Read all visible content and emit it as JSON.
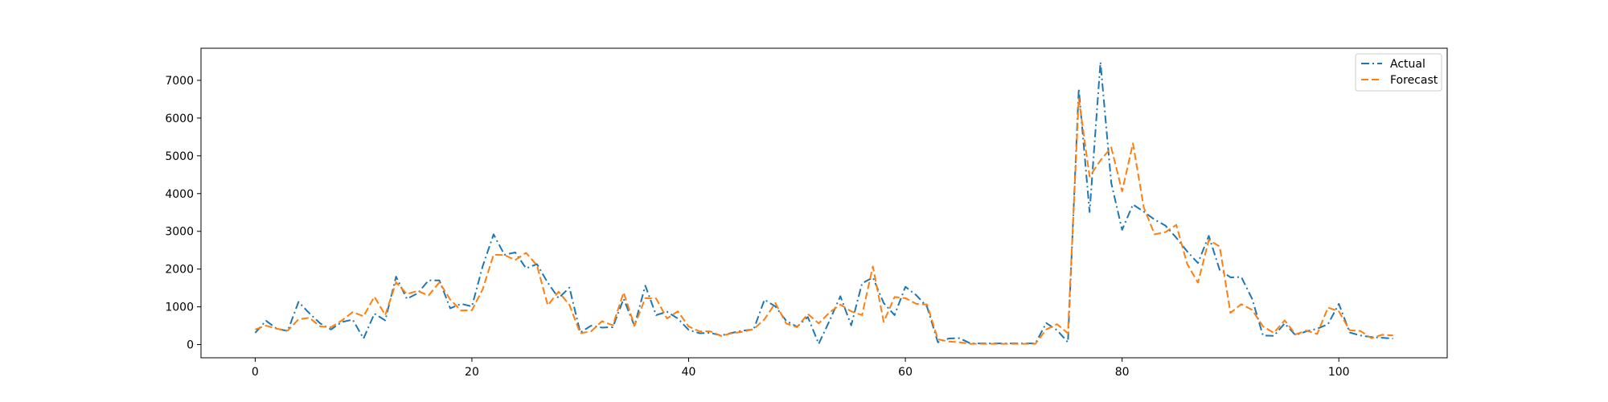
{
  "chart_data": {
    "type": "line",
    "xlim": [
      -5,
      110
    ],
    "ylim": [
      -350,
      7850
    ],
    "xticks": [
      0,
      20,
      40,
      60,
      80,
      100
    ],
    "yticks": [
      0,
      1000,
      2000,
      3000,
      4000,
      5000,
      6000,
      7000
    ],
    "grid": false,
    "legend_position": "top-right",
    "series": [
      {
        "name": "Actual",
        "color": "#1f77b4",
        "style": "dashdot",
        "values": [
          310,
          630,
          420,
          360,
          1130,
          830,
          560,
          400,
          600,
          660,
          160,
          820,
          640,
          1800,
          1210,
          1360,
          1700,
          1700,
          960,
          1080,
          1010,
          2080,
          2920,
          2380,
          2440,
          2020,
          2130,
          1640,
          1230,
          1510,
          320,
          500,
          450,
          460,
          1210,
          500,
          1560,
          780,
          870,
          690,
          390,
          300,
          310,
          240,
          310,
          370,
          400,
          1190,
          1010,
          630,
          470,
          730,
          20,
          630,
          1280,
          510,
          1620,
          1780,
          1100,
          780,
          1530,
          1310,
          1000,
          60,
          160,
          170,
          30,
          30,
          30,
          30,
          30,
          30,
          30,
          570,
          380,
          60,
          6780,
          3510,
          7480,
          4280,
          3040,
          3710,
          3520,
          3310,
          3150,
          2830,
          2470,
          2160,
          2880,
          1980,
          1780,
          1790,
          1210,
          240,
          230,
          560,
          250,
          350,
          420,
          540,
          1080,
          320,
          240,
          200,
          180,
          160
        ]
      },
      {
        "name": "Forecast",
        "color": "#ff7f0e",
        "style": "dashed",
        "values": [
          400,
          500,
          420,
          370,
          670,
          710,
          480,
          460,
          640,
          860,
          750,
          1270,
          780,
          1650,
          1340,
          1420,
          1300,
          1650,
          1190,
          900,
          910,
          1470,
          2380,
          2370,
          2240,
          2430,
          2100,
          1040,
          1400,
          1050,
          300,
          350,
          620,
          510,
          1380,
          500,
          1230,
          1220,
          690,
          880,
          480,
          350,
          350,
          230,
          300,
          340,
          410,
          670,
          1100,
          560,
          460,
          810,
          560,
          850,
          1060,
          880,
          780,
          2070,
          600,
          1260,
          1230,
          1080,
          1060,
          140,
          80,
          60,
          20,
          20,
          20,
          20,
          20,
          20,
          20,
          400,
          540,
          300,
          6520,
          4450,
          4880,
          5220,
          4060,
          5330,
          3630,
          2920,
          2980,
          3170,
          2140,
          1640,
          2770,
          2600,
          840,
          1070,
          920,
          480,
          310,
          640,
          270,
          370,
          280,
          980,
          880,
          380,
          360,
          170,
          260,
          240
        ]
      }
    ]
  }
}
